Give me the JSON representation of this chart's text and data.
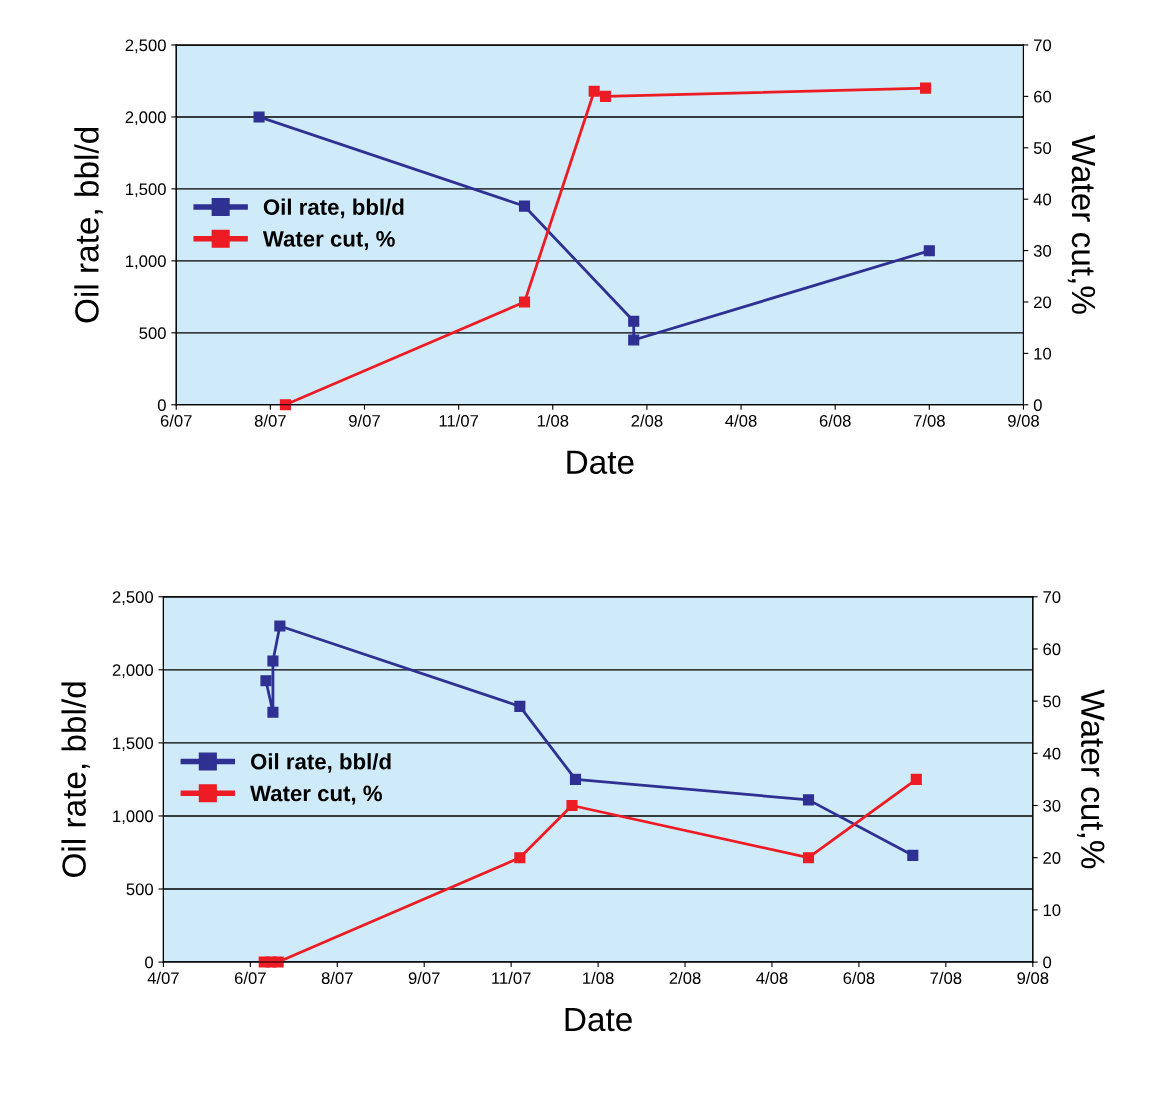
{
  "chart_data": [
    {
      "type": "line",
      "xlabel": "Date",
      "ylabel": "Oil rate, bbl/d",
      "y2label": "Water cut,%",
      "marker": "square",
      "line_style": "solid",
      "grid": "y",
      "legend": "center left",
      "xlim": [
        "2007-06-19",
        "2008-09-11"
      ],
      "xticks": [
        {
          "value": "2007-06-19",
          "label": "6/07"
        },
        {
          "value": "2007-08-08",
          "label": "8/07"
        },
        {
          "value": "2007-09-27",
          "label": "9/07"
        },
        {
          "value": "2007-11-16",
          "label": "11/07"
        },
        {
          "value": "2008-01-05",
          "label": "1/08"
        },
        {
          "value": "2008-02-24",
          "label": "2/08"
        },
        {
          "value": "2008-04-14",
          "label": "4/08"
        },
        {
          "value": "2008-06-03",
          "label": "6/08"
        },
        {
          "value": "2008-07-23",
          "label": "7/08"
        },
        {
          "value": "2008-09-11",
          "label": "9/08"
        }
      ],
      "ylim": [
        0,
        2500
      ],
      "yticks": [
        0,
        500,
        {
          "value": 1000,
          "label": "1,000"
        },
        {
          "value": 1500,
          "label": "1,500"
        },
        {
          "value": 2000,
          "label": "2,000"
        },
        {
          "value": 2500,
          "label": "2,500"
        }
      ],
      "y2lim": [
        0,
        70
      ],
      "y2ticks": [
        0,
        10,
        20,
        30,
        40,
        50,
        60,
        70
      ],
      "series": [
        {
          "name": "Oil rate, bbl/d",
          "color": "#2e3192",
          "x": [
            "2007-08-02",
            "2007-12-21",
            "2008-02-17",
            "2008-02-17",
            "2008-07-23"
          ],
          "values": [
            2000,
            1380,
            580,
            450,
            1070
          ]
        },
        {
          "name": "Water cut, %",
          "color": "#ed1c24",
          "axis": "y2",
          "x": [
            "2007-08-16",
            "2007-12-21",
            "2008-01-27",
            "2008-02-02",
            "2008-07-21"
          ],
          "values": [
            0,
            20,
            61,
            60,
            61.6
          ]
        }
      ]
    },
    {
      "type": "line",
      "xlabel": "Date",
      "ylabel": "Oil rate, bbl/d",
      "y2label": "Water cut,%",
      "marker": "square",
      "line_style": "solid",
      "grid": "y",
      "legend": "center left",
      "xlim": [
        "2007-04-28",
        "2008-09-09"
      ],
      "xticks": [
        {
          "value": "2007-04-28",
          "label": "4/07"
        },
        {
          "value": "2007-06-17",
          "label": "6/07"
        },
        {
          "value": "2007-08-06",
          "label": "8/07"
        },
        {
          "value": "2007-09-25",
          "label": "9/07"
        },
        {
          "value": "2007-11-14",
          "label": "11/07"
        },
        {
          "value": "2008-01-03",
          "label": "1/08"
        },
        {
          "value": "2008-02-22",
          "label": "2/08"
        },
        {
          "value": "2008-04-12",
          "label": "4/08"
        },
        {
          "value": "2008-06-01",
          "label": "6/08"
        },
        {
          "value": "2008-07-21",
          "label": "7/08"
        },
        {
          "value": "2008-09-09",
          "label": "9/08"
        }
      ],
      "ylim": [
        0,
        2500
      ],
      "yticks": [
        0,
        500,
        {
          "value": 1000,
          "label": "1,000"
        },
        {
          "value": 1500,
          "label": "1,500"
        },
        {
          "value": 2000,
          "label": "2,000"
        },
        {
          "value": 2500,
          "label": "2,500"
        }
      ],
      "y2lim": [
        0,
        70
      ],
      "y2ticks": [
        0,
        10,
        20,
        30,
        40,
        50,
        60,
        70
      ],
      "series": [
        {
          "name": "Oil rate, bbl/d",
          "color": "#2e3192",
          "x": [
            "2007-06-26",
            "2007-06-30",
            "2007-06-30",
            "2007-07-04",
            "2007-11-19",
            "2007-12-21",
            "2008-05-03",
            "2008-07-02"
          ],
          "values": [
            1925,
            1710,
            2060,
            2300,
            1750,
            1250,
            1110,
            730
          ]
        },
        {
          "name": "Water cut, %",
          "color": "#ed1c24",
          "axis": "y2",
          "x": [
            "2007-06-25",
            "2007-06-29",
            "2007-07-03",
            "2007-11-19",
            "2007-12-19",
            "2008-05-03",
            "2008-07-04"
          ],
          "values": [
            0,
            0,
            0,
            20,
            30,
            20,
            35
          ]
        }
      ]
    }
  ]
}
